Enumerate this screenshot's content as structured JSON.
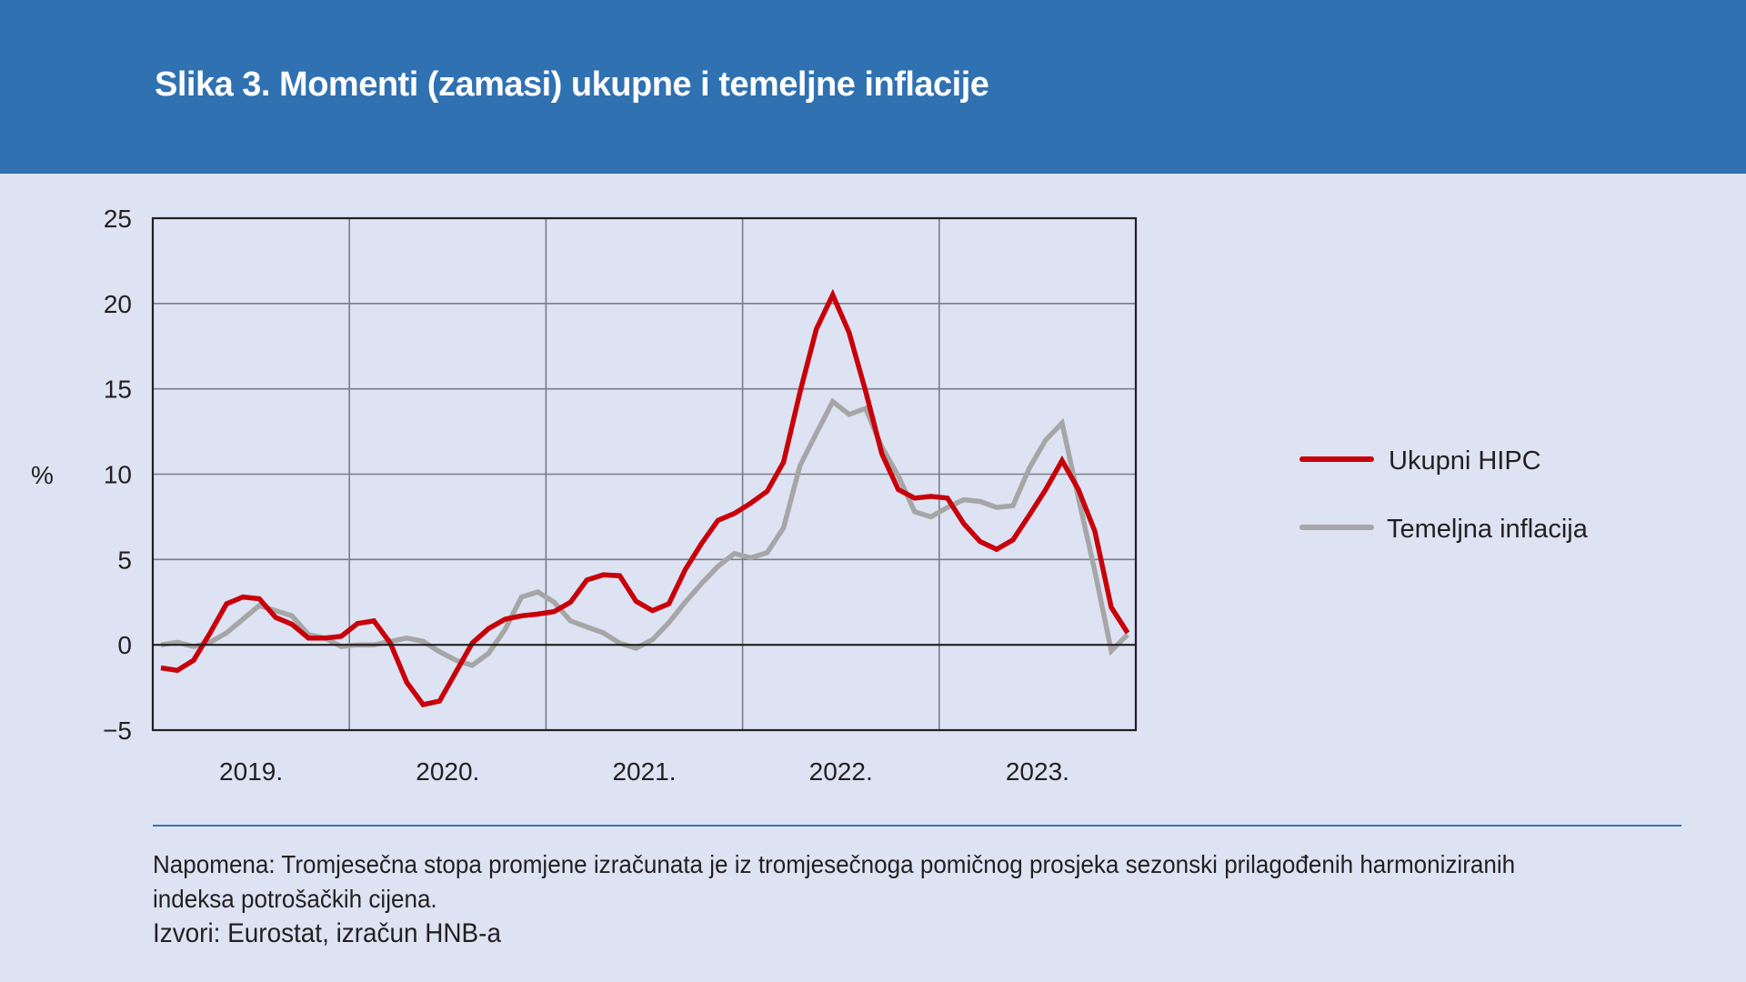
{
  "header": {
    "title": "Slika 3. Momenti (zamasi) ukupne i temeljne inflacije"
  },
  "chart_data": {
    "type": "line",
    "title": "Slika 3. Momenti (zamasi) ukupne i temeljne inflacije",
    "xlabel": "",
    "ylabel": "%",
    "ylim": [
      -5,
      25
    ],
    "yticks": [
      -5,
      0,
      5,
      10,
      15,
      20,
      25
    ],
    "ytick_labels": [
      "−5",
      "0",
      "5",
      "10",
      "15",
      "20",
      "25"
    ],
    "grid": true,
    "legend_position": "right",
    "x_start": "2019-01",
    "x_frequency": "monthly",
    "x_categories": [
      "2019.",
      "2020.",
      "2021.",
      "2022.",
      "2023."
    ],
    "series": [
      {
        "name": "Ukupni HIPC",
        "color": "#c8000a",
        "values": [
          -1.35,
          -1.5,
          -0.9,
          0.7,
          2.4,
          2.8,
          2.7,
          1.6,
          1.2,
          0.4,
          0.4,
          0.5,
          1.25,
          1.4,
          0.1,
          -2.2,
          -3.5,
          -3.3,
          -1.6,
          0.1,
          0.95,
          1.5,
          1.7,
          1.8,
          1.95,
          2.5,
          3.8,
          4.1,
          4.05,
          2.55,
          2.0,
          2.4,
          4.4,
          5.95,
          7.3,
          7.7,
          8.3,
          9.0,
          10.7,
          14.8,
          18.5,
          20.5,
          18.3,
          14.9,
          11.2,
          9.1,
          8.6,
          8.7,
          8.6,
          7.1,
          6.05,
          5.6,
          6.15,
          7.6,
          9.1,
          10.8,
          9.1,
          6.65,
          2.2,
          0.7
        ]
      },
      {
        "name": "Temeljna inflacija",
        "color": "#a6a6a6",
        "values": [
          0.0,
          0.15,
          -0.1,
          0.15,
          0.7,
          1.5,
          2.3,
          2.0,
          1.7,
          0.6,
          0.4,
          -0.1,
          0.0,
          0.0,
          0.2,
          0.4,
          0.2,
          -0.4,
          -0.9,
          -1.2,
          -0.5,
          0.9,
          2.8,
          3.1,
          2.5,
          1.4,
          1.05,
          0.7,
          0.1,
          -0.2,
          0.3,
          1.3,
          2.5,
          3.6,
          4.6,
          5.35,
          5.1,
          5.4,
          6.85,
          10.5,
          12.4,
          14.25,
          13.5,
          13.85,
          11.6,
          9.9,
          7.8,
          7.5,
          8.05,
          8.5,
          8.4,
          8.05,
          8.15,
          10.35,
          12.0,
          13.0,
          8.6,
          4.3,
          -0.35,
          0.6
        ]
      }
    ]
  },
  "legend": {
    "items": [
      {
        "label": "Ukupni HIPC",
        "color": "#c8000a"
      },
      {
        "label": "Temeljna inflacija",
        "color": "#a6a6a6"
      }
    ]
  },
  "footer": {
    "note_line1": "Napomena: Tromjesečna stopa promjene izračunata je iz tromjesečnoga pomičnog prosjeka sezonski prilagođenih harmoniziranih",
    "note_line2": "indeksa potrošačkih cijena.",
    "sources": "Izvori: Eurostat, izračun HNB-a"
  },
  "colors": {
    "header_bg": "#2f71b1",
    "page_bg": "#dde3f3",
    "rule": "#3a72b4"
  }
}
